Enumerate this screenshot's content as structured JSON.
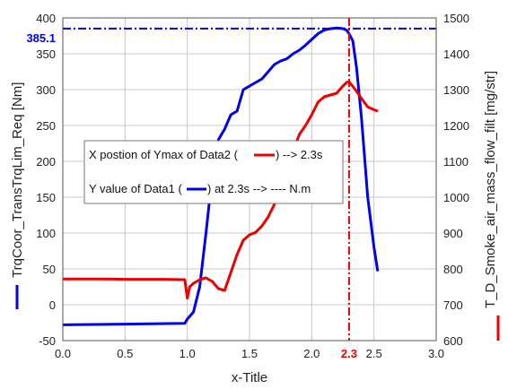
{
  "chart_data": {
    "type": "line",
    "xlabel": "x-Title",
    "ylabel_left": "TrqCoor_TransTrqLim_Req [Nm]",
    "ylabel_right": "T_D_Smoke_air_mass_flow_filt [mg/str]",
    "xlim": [
      0,
      3.0
    ],
    "ylim_left": [
      -50,
      400
    ],
    "ylim_right": [
      600,
      1500
    ],
    "x_ticks": [
      "0.0",
      "0.5",
      "1.0",
      "1.5",
      "2.0",
      "2.5",
      "3.0"
    ],
    "y_left_ticks": [
      "-50",
      "0",
      "50",
      "100",
      "150",
      "200",
      "250",
      "300",
      "350",
      "400"
    ],
    "y_right_ticks": [
      "600",
      "700",
      "800",
      "900",
      "1000",
      "1100",
      "1200",
      "1300",
      "1400",
      "1500"
    ],
    "grid": true,
    "series": [
      {
        "name": "Data1",
        "axis": "left",
        "color": "#0000ee",
        "x": [
          0.0,
          0.5,
          0.98,
          1.0,
          1.05,
          1.1,
          1.15,
          1.2,
          1.25,
          1.3,
          1.35,
          1.4,
          1.45,
          1.5,
          1.55,
          1.6,
          1.65,
          1.7,
          1.75,
          1.8,
          1.85,
          1.9,
          1.95,
          2.0,
          2.05,
          2.1,
          2.15,
          2.2,
          2.25,
          2.28,
          2.3,
          2.33,
          2.36,
          2.4,
          2.45,
          2.5,
          2.53
        ],
        "y": [
          -28,
          -27,
          -26,
          -20,
          -10,
          25,
          100,
          180,
          230,
          245,
          265,
          270,
          300,
          305,
          310,
          315,
          325,
          335,
          340,
          343,
          350,
          355,
          362,
          370,
          378,
          383,
          385,
          386,
          385.1,
          383,
          378,
          368,
          330,
          260,
          150,
          80,
          47
        ]
      },
      {
        "name": "Data2",
        "axis": "right",
        "color": "#ee0000",
        "x": [
          0.0,
          0.3,
          0.5,
          0.8,
          0.98,
          1.0,
          1.02,
          1.05,
          1.1,
          1.15,
          1.2,
          1.25,
          1.3,
          1.35,
          1.4,
          1.45,
          1.5,
          1.55,
          1.6,
          1.65,
          1.7,
          1.75,
          1.8,
          1.85,
          1.9,
          1.95,
          2.0,
          2.05,
          2.1,
          2.15,
          2.2,
          2.25,
          2.28,
          2.3,
          2.35,
          2.4,
          2.45,
          2.5,
          2.53
        ],
        "y": [
          772,
          772,
          771,
          771,
          770,
          718,
          750,
          760,
          770,
          775,
          765,
          745,
          740,
          790,
          840,
          880,
          895,
          902,
          920,
          945,
          980,
          1040,
          1090,
          1130,
          1175,
          1200,
          1230,
          1265,
          1280,
          1285,
          1290,
          1310,
          1320,
          1322,
          1300,
          1275,
          1252,
          1244,
          1240
        ]
      }
    ],
    "reference_lines": [
      {
        "orientation": "horizontal",
        "axis": "left",
        "value": 385.1,
        "label": "385.1",
        "color": "#0000ee"
      },
      {
        "orientation": "vertical",
        "value": 2.3,
        "label": "2.3",
        "color": "#ee0000"
      }
    ],
    "annotations": [
      {
        "text_prefix": "X postion of Ymax of Data2 (",
        "text_suffix": ") --> 2.3s",
        "series": "Data2"
      },
      {
        "text_prefix": "Y value of Data1 (",
        "text_suffix": ") at 2.3s --> ---- N.m",
        "series": "Data1"
      }
    ]
  }
}
